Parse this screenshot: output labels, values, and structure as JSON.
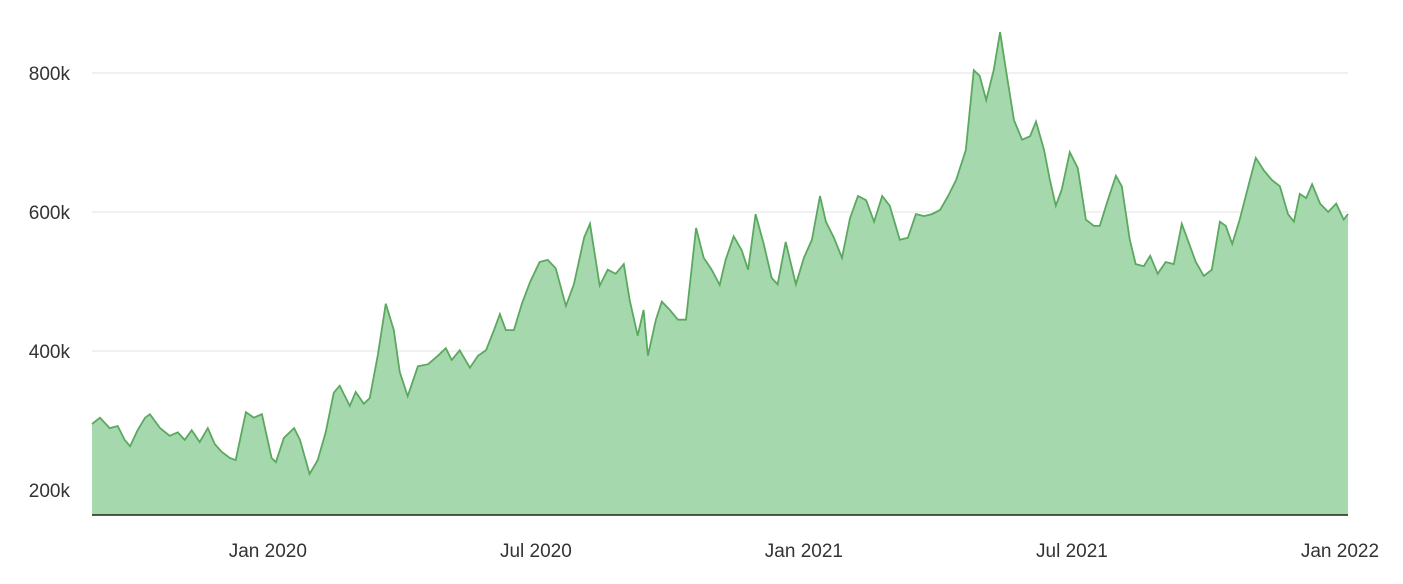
{
  "chart_data": {
    "type": "area",
    "color": "#a5d8ad",
    "line_color": "#5aa95f",
    "xlim": [
      2019.672,
      2022.015
    ],
    "ylim": [
      164000,
      905000
    ],
    "grid": true,
    "xticks": [
      {
        "value": 2020,
        "label": "Jan 2020"
      },
      {
        "value": 2020.5,
        "label": "Jul 2020"
      },
      {
        "value": 2021,
        "label": "Jan 2021"
      },
      {
        "value": 2021.5,
        "label": "Jul 2021"
      },
      {
        "value": 2022,
        "label": "Jan 2022"
      }
    ],
    "yticks": [
      {
        "value": 200000,
        "label": "200k"
      },
      {
        "value": 400000,
        "label": "400k"
      },
      {
        "value": 600000,
        "label": "600k"
      },
      {
        "value": 800000,
        "label": "800k"
      }
    ],
    "x": [
      2019.672,
      2019.687,
      2019.705,
      2019.72,
      2019.733,
      2019.743,
      2019.757,
      2019.771,
      2019.78,
      2019.799,
      2019.817,
      2019.832,
      2019.845,
      2019.858,
      2019.873,
      2019.888,
      2019.901,
      2019.914,
      2019.929,
      2019.94,
      2019.959,
      2019.974,
      2019.989,
      2020.007,
      2020.015,
      2020.03,
      2020.049,
      2020.06,
      2020.078,
      2020.093,
      2020.108,
      2020.123,
      2020.134,
      2020.153,
      2020.164,
      2020.179,
      2020.19,
      2020.205,
      2020.22,
      2020.235,
      2020.246,
      2020.261,
      2020.28,
      2020.299,
      2020.317,
      2020.332,
      2020.343,
      2020.358,
      2020.377,
      2020.392,
      2020.407,
      2020.422,
      2020.433,
      2020.444,
      2020.459,
      2020.474,
      2020.489,
      2020.507,
      2020.522,
      2020.537,
      2020.556,
      2020.571,
      2020.59,
      2020.601,
      2020.619,
      2020.634,
      2020.649,
      2020.664,
      2020.675,
      2020.69,
      2020.701,
      2020.709,
      2020.724,
      2020.735,
      2020.75,
      2020.765,
      2020.78,
      2020.799,
      2020.813,
      2020.828,
      2020.843,
      2020.854,
      2020.869,
      2020.884,
      2020.896,
      2020.91,
      2020.925,
      2020.94,
      2020.951,
      2020.966,
      2020.985,
      2021.0,
      2021.015,
      2021.03,
      2021.041,
      2021.056,
      2021.071,
      2021.086,
      2021.101,
      2021.116,
      2021.131,
      2021.146,
      2021.16,
      2021.179,
      2021.194,
      2021.209,
      2021.224,
      2021.239,
      2021.254,
      2021.269,
      2021.284,
      2021.302,
      2021.317,
      2021.328,
      2021.34,
      2021.354,
      2021.366,
      2021.377,
      2021.392,
      2021.407,
      2021.422,
      2021.433,
      2021.448,
      2021.459,
      2021.47,
      2021.481,
      2021.496,
      2021.511,
      2021.526,
      2021.541,
      2021.552,
      2021.567,
      2021.582,
      2021.593,
      2021.608,
      2021.619,
      2021.634,
      2021.646,
      2021.66,
      2021.675,
      2021.69,
      2021.705,
      2021.716,
      2021.731,
      2021.746,
      2021.761,
      2021.776,
      2021.787,
      2021.799,
      2021.813,
      2021.832,
      2021.843,
      2021.858,
      2021.873,
      2021.888,
      2021.903,
      2021.914,
      2021.925,
      2021.937,
      2021.948,
      2021.963,
      2021.978,
      2021.993,
      2022.007,
      2022.015
    ],
    "values": [
      295000,
      304000,
      289000,
      292000,
      272000,
      263000,
      286000,
      304000,
      309000,
      289000,
      278000,
      283000,
      272000,
      286000,
      269000,
      289000,
      266000,
      255000,
      246000,
      243000,
      312000,
      304000,
      309000,
      246000,
      240000,
      275000,
      289000,
      272000,
      223000,
      243000,
      283000,
      340000,
      350000,
      321000,
      341000,
      324000,
      332000,
      393000,
      468000,
      430000,
      370000,
      335000,
      378000,
      381000,
      393000,
      404000,
      387000,
      401000,
      376000,
      393000,
      401000,
      430000,
      453000,
      430000,
      430000,
      468000,
      499000,
      528000,
      531000,
      519000,
      465000,
      496000,
      563000,
      583000,
      494000,
      517000,
      511000,
      525000,
      473000,
      422000,
      459000,
      393000,
      445000,
      471000,
      459000,
      445000,
      445000,
      577000,
      534000,
      517000,
      495000,
      531000,
      565000,
      545000,
      517000,
      597000,
      554000,
      505000,
      496000,
      557000,
      496000,
      534000,
      560000,
      623000,
      586000,
      563000,
      534000,
      591000,
      623000,
      617000,
      586000,
      623000,
      609000,
      560000,
      563000,
      597000,
      594000,
      597000,
      603000,
      623000,
      646000,
      689000,
      804000,
      796000,
      761000,
      804000,
      859000,
      804000,
      732000,
      704000,
      709000,
      730000,
      689000,
      646000,
      609000,
      632000,
      686000,
      663000,
      589000,
      580000,
      580000,
      617000,
      652000,
      637000,
      560000,
      525000,
      522000,
      537000,
      511000,
      528000,
      525000,
      583000,
      560000,
      528000,
      508000,
      517000,
      586000,
      580000,
      554000,
      589000,
      646000,
      678000,
      660000,
      646000,
      637000,
      597000,
      586000,
      626000,
      620000,
      640000,
      612000,
      600000,
      612000,
      589000,
      597000
    ]
  }
}
